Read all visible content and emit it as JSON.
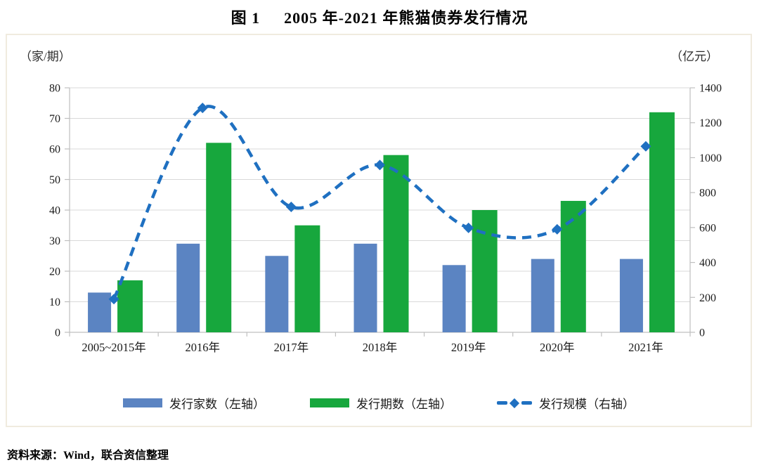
{
  "page": {
    "title_prefix": "图 1",
    "title_main": "2005 年-2021 年熊猫债券发行情况",
    "source_note": "资料来源：Wind，联合资信整理"
  },
  "chart_data": {
    "type": "bar",
    "subtype": "combo-bar-line-dual-axis",
    "title": "图 1  2005 年-2021 年熊猫债券发行情况",
    "categories": [
      "2005~2015年",
      "2016年",
      "2017年",
      "2018年",
      "2019年",
      "2020年",
      "2021年"
    ],
    "series": [
      {
        "name": "发行家数（左轴）",
        "type": "bar",
        "axis": "left",
        "color": "#5b84c2",
        "values": [
          13,
          29,
          25,
          29,
          22,
          24,
          24
        ]
      },
      {
        "name": "发行期数（左轴）",
        "type": "bar",
        "axis": "left",
        "color": "#17a73d",
        "values": [
          17,
          62,
          35,
          58,
          40,
          43,
          72
        ]
      },
      {
        "name": "发行规模（右轴）",
        "type": "line",
        "axis": "right",
        "color": "#1f70c1",
        "line_style": "dashed",
        "marker": "diamond",
        "values": [
          190,
          1285,
          718,
          958,
          598,
          590,
          1065
        ]
      }
    ],
    "left_axis": {
      "label": "（家/期）",
      "min": 0,
      "max": 80,
      "step": 10,
      "ticks": [
        0,
        10,
        20,
        30,
        40,
        50,
        60,
        70,
        80
      ]
    },
    "right_axis": {
      "label": "（亿元）",
      "min": 0,
      "max": 1400,
      "step": 200,
      "ticks": [
        0,
        200,
        400,
        600,
        800,
        1000,
        1200,
        1400
      ]
    },
    "grid": true,
    "legend_position": "bottom",
    "colors": {
      "grid": "#d9d9d9",
      "axis": "#bfbfbf",
      "frame_border": "#f0ebdf",
      "text": "#1a1a1a"
    }
  }
}
